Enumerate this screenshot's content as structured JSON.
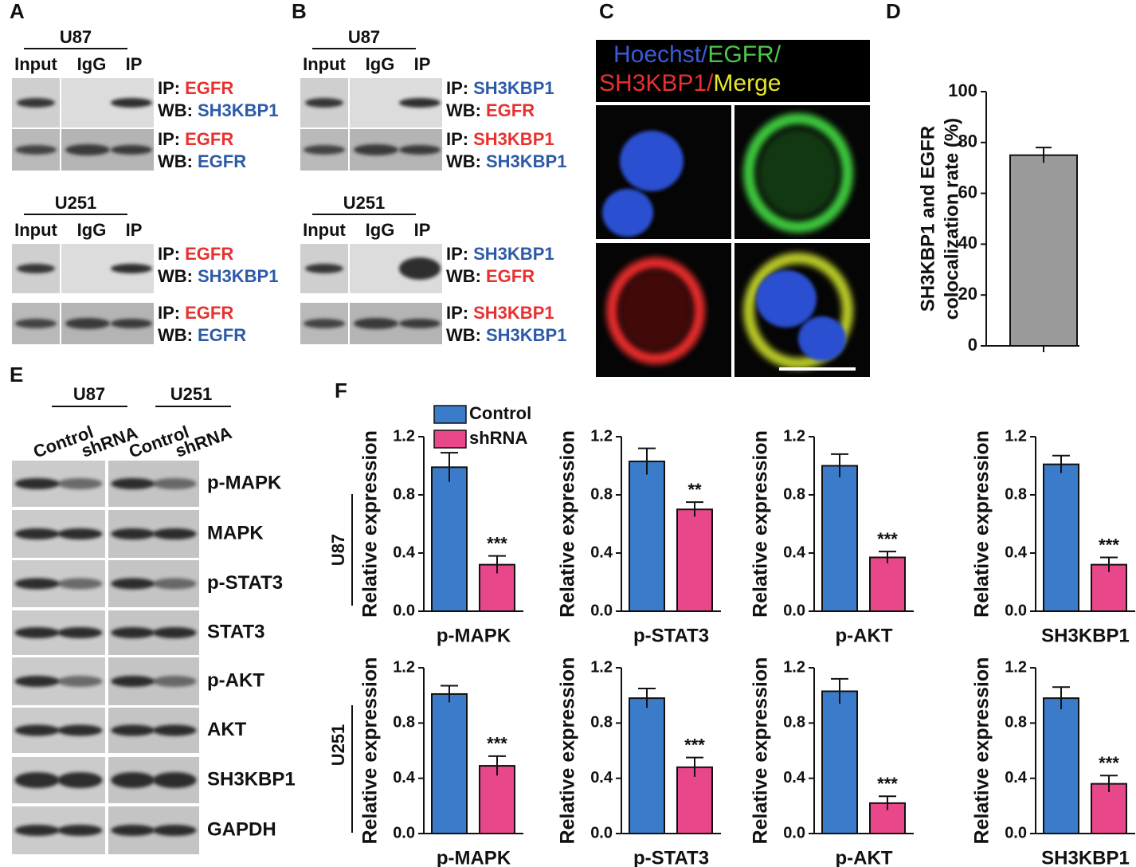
{
  "panel_labels": [
    "A",
    "B",
    "C",
    "D",
    "E",
    "F"
  ],
  "coip": {
    "ip_prefix": "IP:",
    "wb_prefix": "WB:",
    "lanes": [
      "Input",
      "IgG",
      "IP"
    ],
    "panels": [
      {
        "groups": [
          {
            "cell": "U87",
            "rows": [
              {
                "ip": "EGFR",
                "ip_color": "#e8312f",
                "wb": "SH3KBP1",
                "wb_color": "#2d5aa8"
              },
              {
                "ip": "EGFR",
                "ip_color": "#e8312f",
                "wb": "EGFR",
                "wb_color": "#2d5aa8"
              }
            ]
          },
          {
            "cell": "U251",
            "rows": [
              {
                "ip": "EGFR",
                "ip_color": "#e8312f",
                "wb": "SH3KBP1",
                "wb_color": "#2d5aa8"
              },
              {
                "ip": "EGFR",
                "ip_color": "#e8312f",
                "wb": "EGFR",
                "wb_color": "#2d5aa8"
              }
            ]
          }
        ]
      },
      {
        "groups": [
          {
            "cell": "U87",
            "rows": [
              {
                "ip": "SH3KBP1",
                "ip_color": "#2d5aa8",
                "wb": "EGFR",
                "wb_color": "#e8312f"
              },
              {
                "ip": "SH3KBP1",
                "ip_color": "#e8312f",
                "wb": "SH3KBP1",
                "wb_color": "#2d5aa8"
              }
            ]
          },
          {
            "cell": "U251",
            "rows": [
              {
                "ip": "SH3KBP1",
                "ip_color": "#2d5aa8",
                "wb": "EGFR",
                "wb_color": "#e8312f"
              },
              {
                "ip": "SH3KBP1",
                "ip_color": "#e8312f",
                "wb": "SH3KBP1",
                "wb_color": "#2d5aa8"
              }
            ]
          }
        ]
      }
    ]
  },
  "imaging": {
    "title": [
      {
        "text": "Hoechst/",
        "color": "#3b5bd6"
      },
      {
        "text": "EGFR/",
        "color": "#4cc84c"
      },
      {
        "text": "SH3KBP1/",
        "color": "#e8312f"
      },
      {
        "text": "Merge",
        "color": "#e6e62a"
      }
    ]
  },
  "western": {
    "cells": [
      "U87",
      "U251"
    ],
    "lanes": [
      "Control",
      "shRNA"
    ],
    "proteins": [
      "p-MAPK",
      "MAPK",
      "p-STAT3",
      "STAT3",
      "p-AKT",
      "AKT",
      "SH3KBP1",
      "GAPDH"
    ]
  },
  "f_rows": [
    "U87",
    "U251"
  ],
  "chart_data": [
    {
      "type": "bar",
      "ylabel": [
        "SH3KBP1 and EGFR",
        "colocalization rate (%)"
      ],
      "values": [
        75
      ],
      "errors": [
        3
      ],
      "color": "#9a9a9a",
      "ylim": [
        0,
        100
      ],
      "yticks": [
        0,
        20,
        40,
        60,
        80,
        100
      ]
    },
    {
      "type": "bar",
      "ylabel": "Relative expression",
      "xlabel": "p-MAPK",
      "ylim": [
        0,
        1.2
      ],
      "yticks": [
        {
          "value": 0,
          "label": "0.0"
        },
        0.4,
        0.8,
        1.2
      ],
      "series": [
        {
          "name": "Control",
          "color": "#3a7cc9",
          "values": [
            0.99
          ],
          "errors": [
            0.1
          ]
        },
        {
          "name": "shRNA",
          "color": "#e8478a",
          "values": [
            0.32
          ],
          "errors": [
            0.06
          ],
          "significance": "***"
        }
      ]
    },
    {
      "type": "bar",
      "ylabel": "Relative expression",
      "xlabel": "p-STAT3",
      "ylim": [
        0,
        1.2
      ],
      "yticks": [
        {
          "value": 0,
          "label": "0.0"
        },
        0.4,
        0.8,
        1.2
      ],
      "series": [
        {
          "color": "#3a7cc9",
          "values": [
            1.03
          ],
          "errors": [
            0.09
          ]
        },
        {
          "color": "#e8478a",
          "values": [
            0.7
          ],
          "errors": [
            0.05
          ],
          "significance": "**"
        }
      ]
    },
    {
      "type": "bar",
      "ylabel": "Relative expression",
      "xlabel": "p-AKT",
      "ylim": [
        0,
        1.2
      ],
      "yticks": [
        {
          "value": 0,
          "label": "0.0"
        },
        0.4,
        0.8,
        1.2
      ],
      "series": [
        {
          "color": "#3a7cc9",
          "values": [
            1.0
          ],
          "errors": [
            0.08
          ]
        },
        {
          "color": "#e8478a",
          "values": [
            0.37
          ],
          "errors": [
            0.04
          ],
          "significance": "***"
        }
      ]
    },
    {
      "type": "bar",
      "ylabel": "Relative expression",
      "xlabel": "SH3KBP1",
      "ylim": [
        0,
        1.2
      ],
      "yticks": [
        {
          "value": 0,
          "label": "0.0"
        },
        0.4,
        0.8,
        1.2
      ],
      "series": [
        {
          "color": "#3a7cc9",
          "values": [
            1.01
          ],
          "errors": [
            0.06
          ]
        },
        {
          "color": "#e8478a",
          "values": [
            0.32
          ],
          "errors": [
            0.05
          ],
          "significance": "***"
        }
      ]
    },
    {
      "type": "bar",
      "ylabel": "Relative expression",
      "xlabel": "p-MAPK",
      "ylim": [
        0,
        1.2
      ],
      "yticks": [
        {
          "value": 0,
          "label": "0.0"
        },
        0.4,
        0.8,
        1.2
      ],
      "series": [
        {
          "color": "#3a7cc9",
          "values": [
            1.01
          ],
          "errors": [
            0.06
          ]
        },
        {
          "color": "#e8478a",
          "values": [
            0.49
          ],
          "errors": [
            0.07
          ],
          "significance": "***"
        }
      ]
    },
    {
      "type": "bar",
      "ylabel": "Relative expression",
      "xlabel": "p-STAT3",
      "ylim": [
        0,
        1.2
      ],
      "yticks": [
        {
          "value": 0,
          "label": "0.0"
        },
        0.4,
        0.8,
        1.2
      ],
      "series": [
        {
          "color": "#3a7cc9",
          "values": [
            0.98
          ],
          "errors": [
            0.07
          ]
        },
        {
          "color": "#e8478a",
          "values": [
            0.48
          ],
          "errors": [
            0.07
          ],
          "significance": "***"
        }
      ]
    },
    {
      "type": "bar",
      "ylabel": "Relative expression",
      "xlabel": "p-AKT",
      "ylim": [
        0,
        1.2
      ],
      "yticks": [
        {
          "value": 0,
          "label": "0.0"
        },
        0.4,
        0.8,
        1.2
      ],
      "series": [
        {
          "color": "#3a7cc9",
          "values": [
            1.03
          ],
          "errors": [
            0.09
          ]
        },
        {
          "color": "#e8478a",
          "values": [
            0.22
          ],
          "errors": [
            0.05
          ],
          "significance": "***"
        }
      ]
    },
    {
      "type": "bar",
      "ylabel": "Relative expression",
      "xlabel": "SH3KBP1",
      "ylim": [
        0,
        1.2
      ],
      "yticks": [
        {
          "value": 0,
          "label": "0.0"
        },
        0.4,
        0.8,
        1.2
      ],
      "series": [
        {
          "color": "#3a7cc9",
          "values": [
            0.98
          ],
          "errors": [
            0.08
          ]
        },
        {
          "color": "#e8478a",
          "values": [
            0.36
          ],
          "errors": [
            0.06
          ],
          "significance": "***"
        }
      ]
    }
  ]
}
